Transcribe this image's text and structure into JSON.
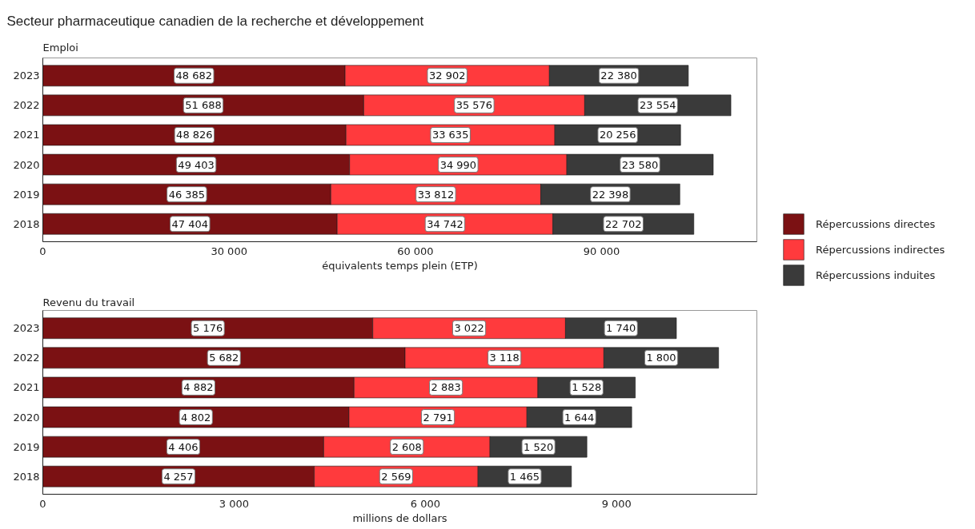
{
  "chart_data": [
    {
      "type": "bar",
      "orientation": "horizontal",
      "stacked": true,
      "title": "Secteur pharmaceutique canadien de la recherche et développement",
      "subtitle": "Emploi",
      "xlabel": "équivalents temps plein (ETP)",
      "categories": [
        "2023",
        "2022",
        "2021",
        "2020",
        "2019",
        "2018"
      ],
      "series": [
        {
          "name": "Répercussions directes",
          "color": "#7b1113",
          "values": [
            48682,
            51688,
            48826,
            49403,
            46385,
            47404
          ],
          "value_labels": [
            "48 682",
            "51 688",
            "48 826",
            "49 403",
            "46 385",
            "47 404"
          ]
        },
        {
          "name": "Répercussions indirectes",
          "color": "#ff3a3d",
          "values": [
            32902,
            35576,
            33635,
            34990,
            33812,
            34742
          ],
          "value_labels": [
            "32 902",
            "35 576",
            "33 635",
            "34 990",
            "33 812",
            "34 742"
          ]
        },
        {
          "name": "Répercussions induites",
          "color": "#3a3a3a",
          "values": [
            22380,
            23554,
            20256,
            23580,
            22398,
            22702
          ],
          "value_labels": [
            "22 380",
            "23 554",
            "20 256",
            "23 580",
            "22 398",
            "22 702"
          ]
        }
      ],
      "xlim": [
        0,
        115000
      ],
      "xticks": [
        0,
        {
          "value": 30000,
          "label": "30 000"
        },
        {
          "value": 60000,
          "label": "60 000"
        },
        {
          "value": 90000,
          "label": "90 000"
        }
      ],
      "legend": "bottom right"
    },
    {
      "type": "bar",
      "orientation": "horizontal",
      "stacked": true,
      "title": "Revenu du travail",
      "xlabel": "millions de dollars",
      "categories": [
        "2023",
        "2022",
        "2021",
        "2020",
        "2019",
        "2018"
      ],
      "series": [
        {
          "color": "#7b1113",
          "values": [
            5176,
            5682,
            4882,
            4802,
            4406,
            4257
          ],
          "value_labels": [
            "5 176",
            "5 682",
            "4 882",
            "4 802",
            "4 406",
            "4 257"
          ]
        },
        {
          "color": "#ff3a3d",
          "values": [
            3022,
            3118,
            2883,
            2791,
            2608,
            2569
          ],
          "value_labels": [
            "3 022",
            "3 118",
            "2 883",
            "2 791",
            "2 608",
            "2 569"
          ]
        },
        {
          "color": "#3a3a3a",
          "values": [
            1740,
            1800,
            1528,
            1644,
            1520,
            1465
          ],
          "value_labels": [
            "1 740",
            "1 800",
            "1 528",
            "1 644",
            "1 520",
            "1 465"
          ]
        }
      ],
      "xlim": [
        0,
        11200
      ],
      "xticks": [
        0,
        {
          "value": 3000,
          "label": "3 000"
        },
        {
          "value": 6000,
          "label": "6 000"
        },
        {
          "value": 9000,
          "label": "9 000"
        }
      ]
    }
  ]
}
